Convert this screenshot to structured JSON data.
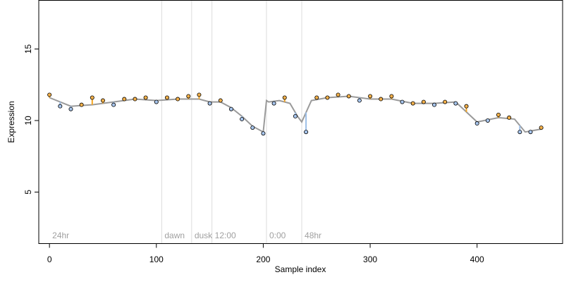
{
  "chart_data": {
    "type": "scatter",
    "title": "",
    "xlabel": "Sample index",
    "ylabel": "Expression",
    "xlim": [
      -10,
      480
    ],
    "ylim": [
      1.4,
      18.4
    ],
    "xticks": [
      0,
      100,
      200,
      300,
      400
    ],
    "xtick_labels": [
      "0",
      "100",
      "200",
      "300",
      "400"
    ],
    "yticks": [
      5,
      10,
      15
    ],
    "ytick_labels": [
      "5",
      "10",
      "15"
    ],
    "grid": false,
    "legend": "none",
    "colors": {
      "above_baseline_segment": "#f5a623",
      "below_baseline_segment": "#9dbfe8",
      "above_point_fill": "#f5b14a",
      "below_point_fill": "#a8c6ee",
      "smooth_line": "#9a9a9a",
      "vline": "#dcdcdc",
      "annotation_text": "#a0a0a0"
    },
    "vertical_markers": [
      {
        "x": 0,
        "label": "24hr"
      },
      {
        "x": 105,
        "label": "dawn"
      },
      {
        "x": 133,
        "label": "dusk"
      },
      {
        "x": 152,
        "label": "12:00"
      },
      {
        "x": 203,
        "label": "0:00"
      },
      {
        "x": 236,
        "label": "48hr"
      }
    ],
    "smooth_profile": {
      "x": [
        0,
        20,
        40,
        60,
        80,
        100,
        120,
        140,
        150,
        160,
        170,
        180,
        190,
        200,
        203,
        205,
        215,
        225,
        232,
        236,
        245,
        260,
        280,
        300,
        320,
        340,
        360,
        380,
        400,
        420,
        435,
        445,
        460
      ],
      "y": [
        11.6,
        11.0,
        11.1,
        11.3,
        11.5,
        11.4,
        11.5,
        11.5,
        11.3,
        11.3,
        10.9,
        10.3,
        9.6,
        9.2,
        11.4,
        11.3,
        11.4,
        11.2,
        10.3,
        9.9,
        11.4,
        11.6,
        11.7,
        11.5,
        11.5,
        11.2,
        11.2,
        11.3,
        9.9,
        10.2,
        10.1,
        9.2,
        9.4
      ]
    },
    "series": [
      {
        "x": [
          0,
          10,
          20,
          30,
          40,
          50,
          60,
          70,
          80,
          90,
          100,
          110,
          120,
          130,
          140,
          150,
          160,
          170,
          180,
          190,
          200,
          210,
          220,
          230,
          240,
          250,
          260,
          270,
          280,
          290,
          300,
          310,
          320,
          330,
          340,
          350,
          360,
          370,
          380,
          390,
          400,
          410,
          420,
          430,
          440,
          450,
          460
        ],
        "y": [
          11.8,
          11.0,
          10.8,
          11.1,
          11.6,
          11.4,
          11.1,
          11.5,
          11.5,
          11.6,
          11.3,
          11.6,
          11.5,
          11.7,
          11.8,
          11.2,
          11.4,
          10.8,
          10.1,
          9.5,
          9.1,
          11.2,
          11.6,
          10.3,
          9.2,
          11.6,
          11.6,
          11.8,
          11.7,
          11.4,
          11.7,
          11.5,
          11.7,
          11.3,
          11.2,
          11.3,
          11.1,
          11.3,
          11.2,
          11.0,
          9.8,
          10.0,
          10.4,
          10.2,
          9.2,
          9.2,
          9.5
        ]
      }
    ]
  }
}
